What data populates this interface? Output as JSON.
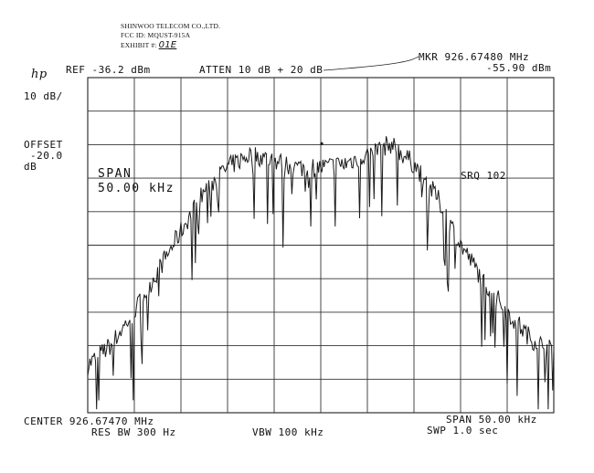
{
  "exhibit": {
    "company": "SHINWOO TELECOM CO.,LTD.",
    "fcc_id": "FCC ID: MQUST-915A",
    "exhibit_label": "EXHIBIT #:",
    "exhibit_no": "01E"
  },
  "logo": "hp",
  "header": {
    "ref": "REF -36.2 dBm",
    "atten": "ATTEN 10 dB + 20 dB",
    "mkr": "MKR 926.67480 MHz",
    "mkr_level": "-55.90 dBm"
  },
  "left": {
    "scale": "10 dB/",
    "offset_label": "OFFSET",
    "offset_value": "-20.0",
    "offset_unit": "dB"
  },
  "annotations": {
    "span_label": "SPAN",
    "span_value": "50.00 kHz",
    "srq": "SRQ 102"
  },
  "footer": {
    "center": "CENTER 926.67470 MHz",
    "res_bw": "RES BW 300 Hz",
    "vbw": "VBW 100 kHz",
    "span": "SPAN 50.00 kHz",
    "swp": "SWP 1.0 sec"
  },
  "colors": {
    "trace": "#1a1a1a",
    "grid": "#333333"
  },
  "chart_data": {
    "type": "line",
    "x_unit": "MHz",
    "y_unit": "dBm",
    "center_mhz": 926.6747,
    "span_khz": 50.0,
    "xlim": [
      926.6497,
      926.6997
    ],
    "ylim": [
      -136.2,
      -36.2
    ],
    "reference_level_dbm": -36.2,
    "scale_db_per_div": 10,
    "grid": true,
    "marker": {
      "x": 926.6748,
      "y": -55.9
    },
    "x": [
      926.6497,
      926.6522,
      926.6547,
      926.6572,
      926.6597,
      926.6622,
      926.6647,
      926.6672,
      926.6697,
      926.6722,
      926.6747,
      926.6772,
      926.6797,
      926.6822,
      926.6847,
      926.6872,
      926.6897,
      926.6922,
      926.6947,
      926.6972,
      926.6997
    ],
    "values": [
      -122,
      -116,
      -106,
      -94,
      -82,
      -70,
      -63,
      -59,
      -61,
      -63,
      -63,
      -62,
      -59,
      -56,
      -62,
      -72,
      -86,
      -97,
      -106,
      -114,
      -118
    ]
  }
}
